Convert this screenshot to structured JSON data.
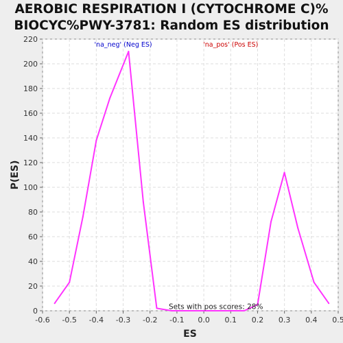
{
  "chart_data": {
    "type": "line",
    "title": [
      "AEROBIC RESPIRATION I (CYTOCHROME C)%",
      "BIOCYC%PWY-3781: Random ES distribution"
    ],
    "xlabel": "ES",
    "ylabel": "P(ES)",
    "xlim": [
      -0.6,
      0.5
    ],
    "ylim": [
      0,
      220
    ],
    "xticks": [
      -0.6,
      -0.5,
      -0.4,
      -0.3,
      -0.2,
      -0.1,
      0.0,
      0.1,
      0.2,
      0.3,
      0.4,
      0.5
    ],
    "xtick_labels": [
      "-0.6",
      "-0.5",
      "-0.4",
      "-0.3",
      "-0.2",
      "-0.1",
      "0.0",
      "0.1",
      "0.2",
      "0.3",
      "0.4",
      "0.5"
    ],
    "yticks": [
      0,
      20,
      40,
      60,
      80,
      100,
      120,
      140,
      160,
      180,
      200,
      220
    ],
    "grid": true,
    "series_color": "#ff33ff",
    "series": [
      {
        "x": [
          -0.555,
          -0.5,
          -0.45,
          -0.4,
          -0.35,
          -0.28,
          -0.225,
          -0.175,
          -0.12,
          -0.07,
          0.0,
          0.05,
          0.1,
          0.15,
          0.2,
          0.25,
          0.3,
          0.35,
          0.41,
          0.465
        ],
        "y": [
          6,
          23,
          76,
          138,
          172,
          210,
          88,
          2,
          0,
          0,
          0,
          0,
          0,
          0,
          5,
          72,
          112,
          67,
          23,
          6
        ]
      }
    ],
    "annotations": [
      {
        "text": "'na_neg' (Neg ES)",
        "color": "#0000cc",
        "x": -0.3,
        "y": 214
      },
      {
        "text": "'na_pos' (Pos ES)",
        "color": "#cc0000",
        "x": 0.1,
        "y": 214
      },
      {
        "text": "Sets with pos scores: 28%",
        "color": "#222222",
        "x": 0.045,
        "y": 1.5
      }
    ]
  }
}
